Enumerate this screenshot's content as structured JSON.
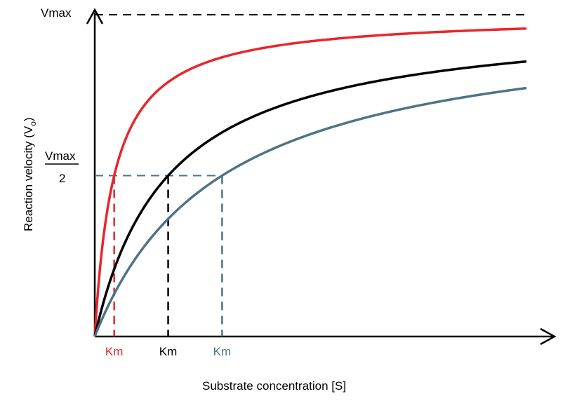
{
  "chart_data": {
    "type": "line",
    "title": "",
    "xlabel": "Substrate concentration [S]",
    "ylabel": "Reaction velocity (V",
    "ylabel_subscript": "o",
    "ylabel_close": ")",
    "vmax_label": "Vmax",
    "half_vmax_label": {
      "numerator": "Vmax",
      "denominator": "2"
    },
    "xlim": [
      0,
      1
    ],
    "ylim": [
      0,
      1
    ],
    "grid": false,
    "legend": "none",
    "series": [
      {
        "km": 0.045,
        "color": "#e8262b",
        "km_label": "Km"
      },
      {
        "km": 0.17,
        "color": "#000000",
        "km_label": "Km"
      },
      {
        "km": 0.295,
        "color": "#4f7386",
        "km_label": "Km"
      }
    ]
  }
}
